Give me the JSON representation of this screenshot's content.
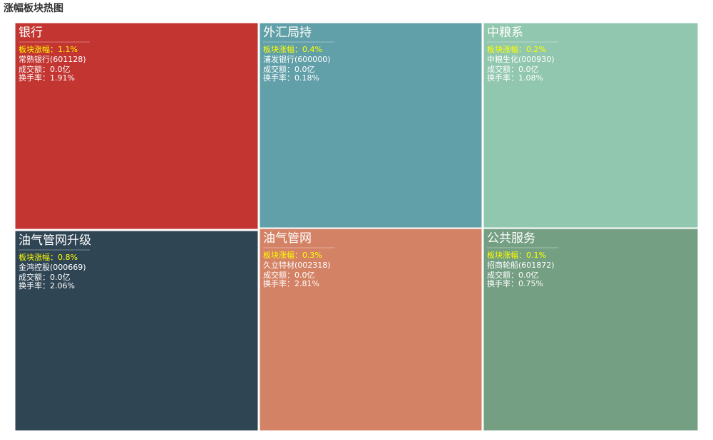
{
  "title": "涨幅板块热图",
  "tiles": [
    {
      "name": "银行",
      "change": "板块涨幅：1.1%",
      "stock": "常熟银行(601128)",
      "amount": "成交额：0.0亿",
      "turnover": "换手率：1.91%",
      "color": "#c23531"
    },
    {
      "name": "外汇局持",
      "change": "板块涨幅：0.4%",
      "stock": "浦发银行(600000)",
      "amount": "成交额：0.0亿",
      "turnover": "换手率：0.18%",
      "color": "#61a0a8"
    },
    {
      "name": "中粮系",
      "change": "板块涨幅：0.2%",
      "stock": "中粮生化(000930)",
      "amount": "成交额：0.0亿",
      "turnover": "换手率：1.08%",
      "color": "#91c7ae"
    },
    {
      "name": "油气管网升级",
      "change": "板块涨幅：0.8%",
      "stock": "金鸿控股(000669)",
      "amount": "成交额：0.0亿",
      "turnover": "换手率：2.06%",
      "color": "#2f4554"
    },
    {
      "name": "油气管网",
      "change": "板块涨幅：0.3%",
      "stock": "久立特材(002318)",
      "amount": "成交额：0.0亿",
      "turnover": "换手率：2.81%",
      "color": "#d48265"
    },
    {
      "name": "公共服务",
      "change": "板块涨幅：0.1%",
      "stock": "招商轮船(601872)",
      "amount": "成交额：0.0亿",
      "turnover": "换手率：0.75%",
      "color": "#749f83"
    }
  ]
}
